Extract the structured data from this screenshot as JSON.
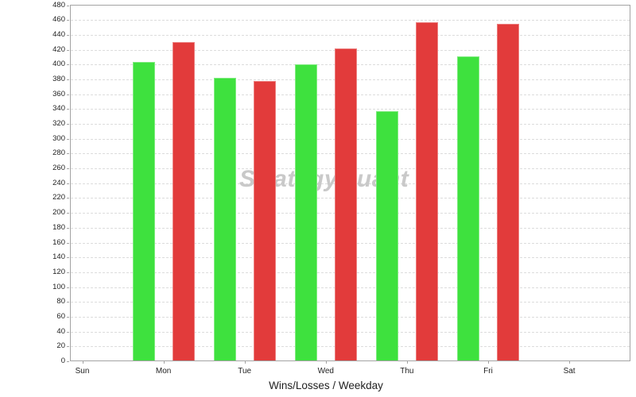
{
  "chart_data": {
    "type": "bar",
    "title": "",
    "xlabel": "Wins/Losses / Weekday",
    "ylabel": "",
    "categories": [
      "Sun",
      "Mon",
      "Tue",
      "Wed",
      "Thu",
      "Fri",
      "Sat"
    ],
    "series": [
      {
        "name": "Wins",
        "color": "#3EE13E",
        "values": [
          null,
          403,
          382,
          400,
          337,
          411,
          null
        ]
      },
      {
        "name": "Losses",
        "color": "#E23B3B",
        "values": [
          null,
          430,
          378,
          422,
          457,
          455,
          null
        ]
      }
    ],
    "ylim": [
      0,
      480
    ],
    "ytick_step": 20,
    "grid": "horizontal-dashed",
    "legend": "none"
  },
  "watermark": {
    "text": "StrategyQuant",
    "color": "#c9c9c9"
  }
}
